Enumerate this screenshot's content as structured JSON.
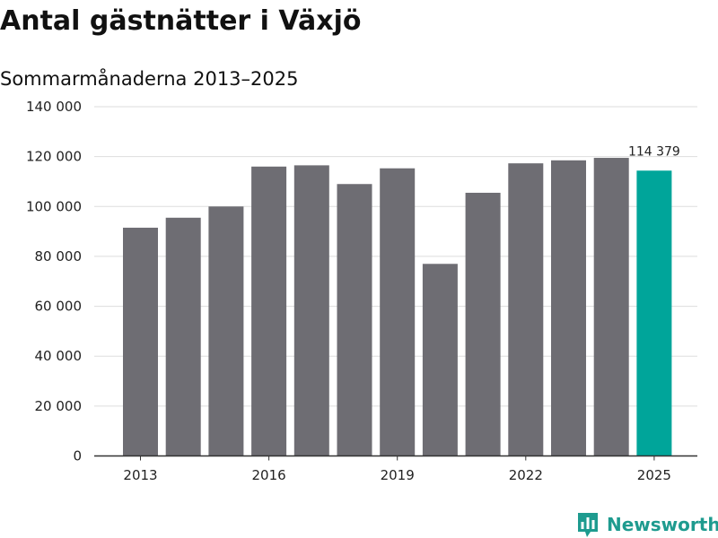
{
  "title": "Antal gästnätter i Växjö",
  "subtitle": "Sommarmånaderna 2013–2025",
  "brand": {
    "name": "Newsworthy",
    "icon": "newsworthy-logo-icon",
    "color": "#1e9b8f"
  },
  "chart_data": {
    "type": "bar",
    "title": "Antal gästnätter i Växjö",
    "subtitle": "Sommarmånaderna 2013–2025",
    "categories": [
      "2013",
      "2014",
      "2015",
      "2016",
      "2017",
      "2018",
      "2019",
      "2020",
      "2021",
      "2022",
      "2023",
      "2024",
      "2025"
    ],
    "values": [
      91500,
      95500,
      100000,
      116000,
      116500,
      109000,
      115300,
      77000,
      105500,
      117300,
      118500,
      119500,
      114379
    ],
    "x_tick_labels": [
      "2013",
      "",
      "",
      "2016",
      "",
      "",
      "2019",
      "",
      "",
      "2022",
      "",
      "",
      "2025"
    ],
    "y_ticks": [
      0,
      20000,
      40000,
      60000,
      80000,
      100000,
      120000,
      140000
    ],
    "y_tick_labels": [
      "0",
      "20 000",
      "40 000",
      "60 000",
      "80 000",
      "100 000",
      "120 000",
      "140 000"
    ],
    "ylim": [
      0,
      140000
    ],
    "grid": true,
    "xlabel": "",
    "ylabel": "",
    "highlight_index": 12,
    "data_labels": [
      {
        "index": 12,
        "text": "114 379"
      }
    ],
    "colors": {
      "bar": "#6e6d73",
      "highlight": "#00a59a",
      "grid": "#dddddd",
      "axis": "#333333"
    }
  }
}
